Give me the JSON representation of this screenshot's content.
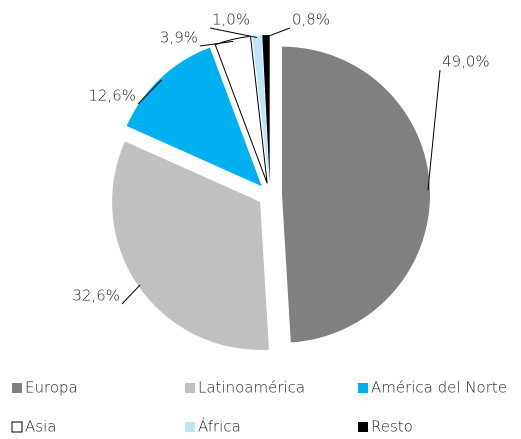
{
  "chart_data": {
    "type": "pie",
    "categories": [
      "Europa",
      "Latinoamérica",
      "América del Norte",
      "Asia",
      "África",
      "Resto"
    ],
    "values": [
      49.0,
      32.6,
      12.6,
      3.9,
      1.0,
      0.8
    ],
    "value_labels": [
      "49,0%",
      "32,6%",
      "12,6%",
      "3,9%",
      "1,0%",
      "0,8%"
    ],
    "colors": [
      "#808080",
      "#c0c0c0",
      "#00b0f0",
      "#ffffff",
      "#bde4f7",
      "#000000"
    ],
    "legend": "bottom"
  }
}
